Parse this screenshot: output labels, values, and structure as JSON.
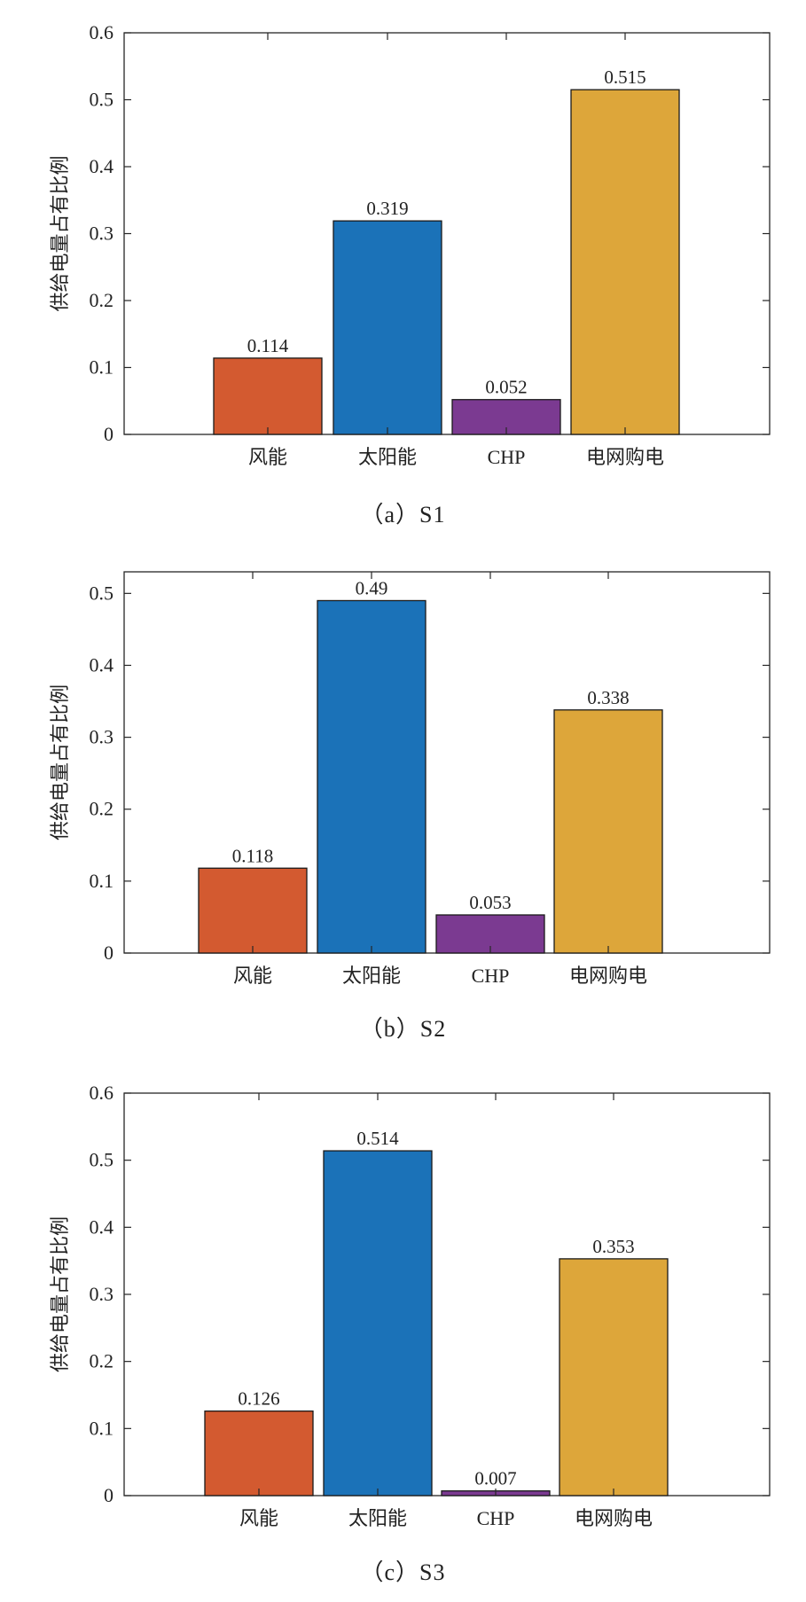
{
  "chart_data": [
    {
      "type": "bar",
      "ylabel": "供给电量占有比例",
      "caption": "（a）S1",
      "categories": [
        "风能",
        "太阳能",
        "CHP",
        "电网购电"
      ],
      "values": [
        0.114,
        0.319,
        0.052,
        0.515
      ],
      "value_labels": [
        "0.114",
        "0.319",
        "0.052",
        "0.515"
      ],
      "ylim": [
        0,
        0.6
      ],
      "yticks": [
        0,
        0.1,
        0.2,
        0.3,
        0.4,
        0.5,
        0.6
      ],
      "ytick_labels": [
        "0",
        "0.1",
        "0.2",
        "0.3",
        "0.4",
        "0.5",
        "0.6"
      ],
      "bar_colors": [
        "#D35A30",
        "#1B72B8",
        "#7B3A91",
        "#DDA63A"
      ],
      "grid": false
    },
    {
      "type": "bar",
      "ylabel": "供给电量占有比例",
      "caption": "（b）S2",
      "categories": [
        "风能",
        "太阳能",
        "CHP",
        "电网购电"
      ],
      "values": [
        0.118,
        0.49,
        0.053,
        0.338
      ],
      "value_labels": [
        "0.118",
        "0.49",
        "0.053",
        "0.338"
      ],
      "ylim": [
        0,
        0.53
      ],
      "yticks": [
        0,
        0.1,
        0.2,
        0.3,
        0.4,
        0.5
      ],
      "ytick_labels": [
        "0",
        "0.1",
        "0.2",
        "0.3",
        "0.4",
        "0.5"
      ],
      "bar_colors": [
        "#D35A30",
        "#1B72B8",
        "#7B3A91",
        "#DDA63A"
      ],
      "grid": false
    },
    {
      "type": "bar",
      "ylabel": "供给电量占有比例",
      "caption": "（c）S3",
      "categories": [
        "风能",
        "太阳能",
        "CHP",
        "电网购电"
      ],
      "values": [
        0.126,
        0.514,
        0.007,
        0.353
      ],
      "value_labels": [
        "0.126",
        "0.514",
        "0.007",
        "0.353"
      ],
      "ylim": [
        0,
        0.6
      ],
      "yticks": [
        0,
        0.1,
        0.2,
        0.3,
        0.4,
        0.5,
        0.6
      ],
      "ytick_labels": [
        "0",
        "0.1",
        "0.2",
        "0.3",
        "0.4",
        "0.5",
        "0.6"
      ],
      "bar_colors": [
        "#D35A30",
        "#1B72B8",
        "#7B3A91",
        "#DDA63A"
      ],
      "grid": false
    }
  ]
}
